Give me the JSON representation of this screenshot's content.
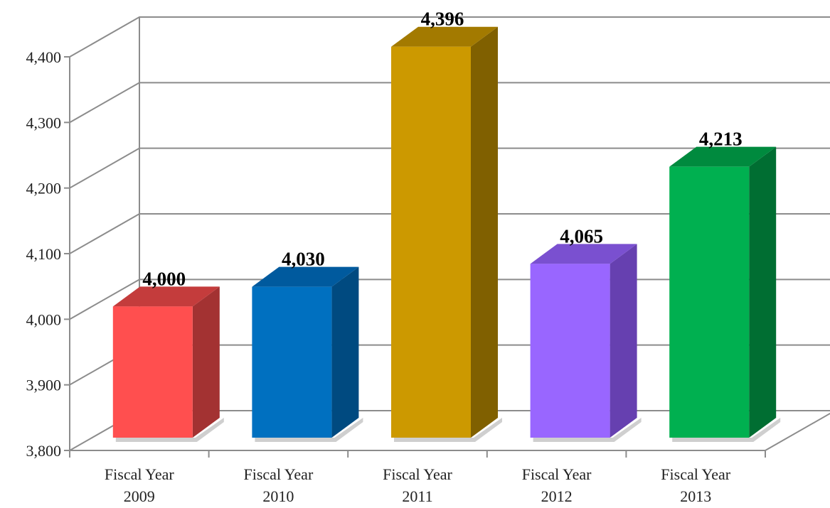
{
  "chart_data": {
    "type": "bar",
    "title": "",
    "xlabel": "",
    "ylabel": "",
    "categories": [
      [
        "Fiscal Year",
        "2009"
      ],
      [
        "Fiscal Year",
        "2010"
      ],
      [
        "Fiscal Year",
        "2011"
      ],
      [
        "Fiscal Year",
        "2012"
      ],
      [
        "Fiscal Year",
        "2013"
      ]
    ],
    "values": [
      4000,
      4030,
      4396,
      4065,
      4213
    ],
    "value_labels": [
      "4,000",
      "4,030",
      "4,396",
      "4,065",
      "4,213"
    ],
    "ylim": [
      3800,
      4400
    ],
    "yticks": [
      3800,
      3900,
      4000,
      4100,
      4200,
      4300,
      4400
    ],
    "ytick_labels": [
      "3,800",
      "3,900",
      "4,000",
      "4,100",
      "4,200",
      "4,300",
      "4,400"
    ],
    "colors": [
      {
        "front": "#ff4f4f",
        "side": "#a33232",
        "top": "#c43c3c"
      },
      {
        "front": "#0070c0",
        "side": "#004a80",
        "top": "#005a9e"
      },
      {
        "front": "#cc9900",
        "side": "#806000",
        "top": "#a37a00"
      },
      {
        "front": "#9966ff",
        "side": "#6640b0",
        "top": "#7a50d0"
      },
      {
        "front": "#00b050",
        "side": "#006e32",
        "top": "#008a3e"
      }
    ],
    "grid": true,
    "legend": "none",
    "style": "3d"
  }
}
